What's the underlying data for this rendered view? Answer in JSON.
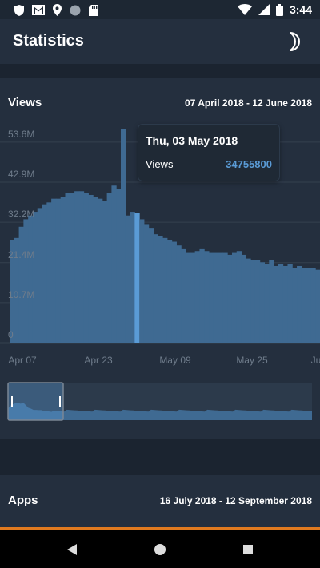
{
  "status_bar": {
    "time": "3:44",
    "left_icons": [
      "shield-icon",
      "gmail-icon",
      "location-pin-icon",
      "circle-icon",
      "sd-card-icon"
    ],
    "right_icons": [
      "wifi-icon",
      "signal-icon",
      "battery-icon"
    ]
  },
  "app_bar": {
    "title": "Statistics",
    "theme_toggle_icon": "moon-icon"
  },
  "views_card": {
    "title": "Views",
    "date_range": "07 April 2018 - 12 June 2018",
    "tooltip": {
      "date": "Thu, 03 May 2018",
      "label": "Views",
      "value": "34755800"
    }
  },
  "apps_card": {
    "title": "Apps",
    "date_range": "16 July 2018 - 12 September 2018"
  },
  "nav_bar": {
    "buttons": [
      "back-icon",
      "home-icon",
      "recents-icon"
    ]
  },
  "colors": {
    "background": "#1d2733",
    "card": "#242f3e",
    "bar": "#3f6a92",
    "highlight": "#5a9bd6",
    "accent_orange": "#e07a1f"
  },
  "chart_data": {
    "type": "bar",
    "series": [
      {
        "name": "Views"
      }
    ],
    "y_ticks": [
      "0",
      "10.7M",
      "21.4M",
      "32.2M",
      "42.9M",
      "53.6M"
    ],
    "x_ticks": [
      "Apr 07",
      "Apr 23",
      "May 09",
      "May 25",
      "Ju"
    ],
    "ylim": [
      0,
      57000000
    ],
    "highlight_date": "Thu, 03 May 2018",
    "highlight_value": 34755800,
    "values": [
      27500000,
      28000000,
      31000000,
      33000000,
      34000000,
      35000000,
      36000000,
      37000000,
      37500000,
      38500000,
      38500000,
      39000000,
      40000000,
      40000000,
      40500000,
      40500000,
      40000000,
      39500000,
      39000000,
      38500000,
      38000000,
      40000000,
      42000000,
      41000000,
      57000000,
      34000000,
      35000000,
      34755800,
      33000000,
      31500000,
      30500000,
      29000000,
      28500000,
      28000000,
      27500000,
      27000000,
      26000000,
      25000000,
      24000000,
      24000000,
      24500000,
      25000000,
      24500000,
      24000000,
      24000000,
      24000000,
      24000000,
      23500000,
      24000000,
      24500000,
      23500000,
      22500000,
      22000000,
      22000000,
      21500000,
      21000000,
      22000000,
      20500000,
      21000000,
      20500000,
      21000000,
      20000000,
      20500000,
      20000000,
      20000000,
      20000000,
      19500000
    ],
    "grid": true
  }
}
